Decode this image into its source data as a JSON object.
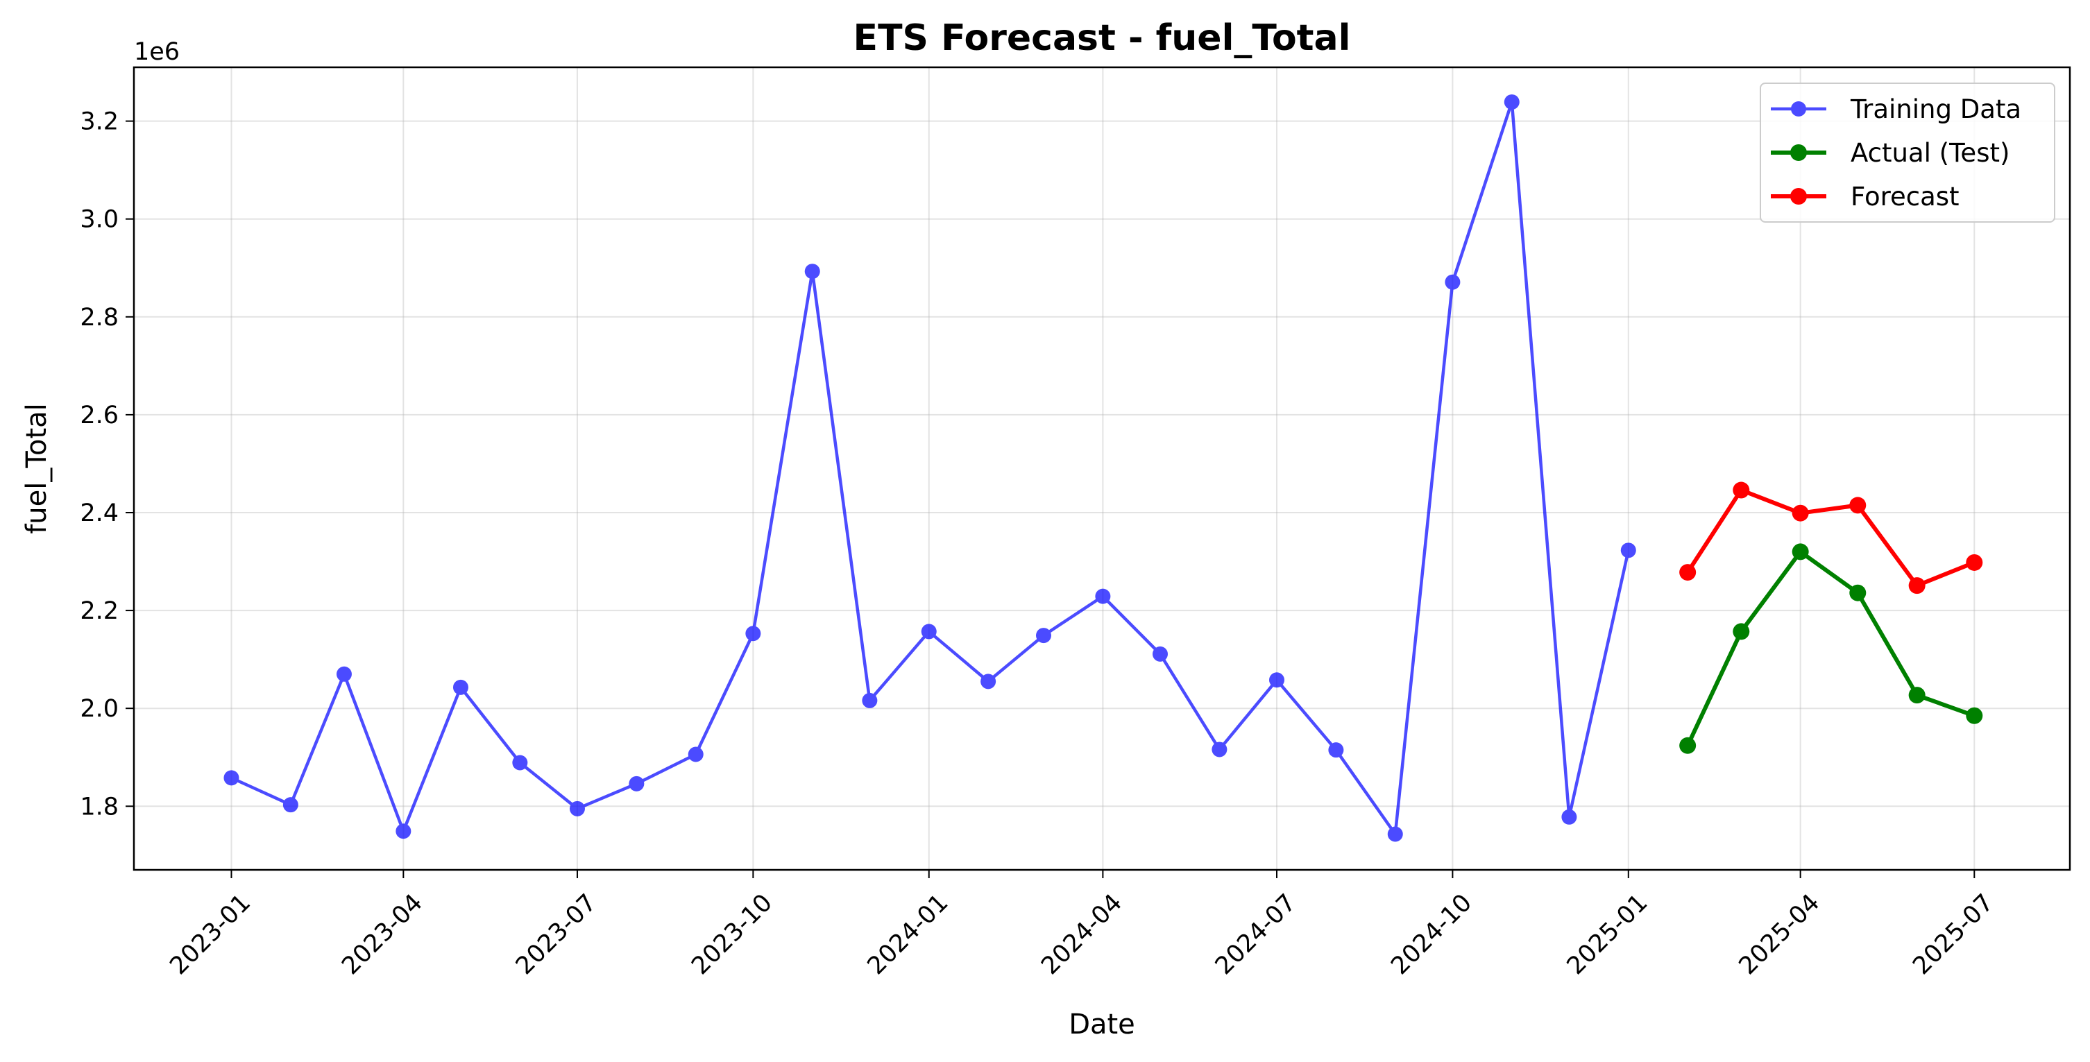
{
  "chart_data": {
    "type": "line",
    "title": "ETS Forecast - fuel_Total",
    "xlabel": "Date",
    "ylabel": "fuel_Total",
    "y_offset_label": "1e6",
    "ylim": [
      1.67,
      3.31
    ],
    "yticks": [
      1.8,
      2.0,
      2.2,
      2.4,
      2.6,
      2.8,
      3.0,
      3.2
    ],
    "ytick_labels": [
      "1.8",
      "2.0",
      "2.2",
      "2.4",
      "2.6",
      "2.8",
      "3.0",
      "3.2"
    ],
    "xlim": [
      "2022-11-11",
      "2025-08-20"
    ],
    "xticks": [
      "2023-01-01",
      "2023-04-01",
      "2023-07-01",
      "2023-10-01",
      "2024-01-01",
      "2024-04-01",
      "2024-07-01",
      "2024-10-01",
      "2025-01-01",
      "2025-04-01",
      "2025-07-01"
    ],
    "xtick_labels": [
      "2023-01",
      "2023-04",
      "2023-07",
      "2023-10",
      "2024-01",
      "2024-04",
      "2024-07",
      "2024-10",
      "2025-01",
      "2025-04",
      "2025-07"
    ],
    "grid": true,
    "legend_position": "top-right",
    "series": [
      {
        "name": "Training Data",
        "color": "#0000ff",
        "x": [
          "2023-01-01",
          "2023-02-01",
          "2023-03-01",
          "2023-04-01",
          "2023-05-01",
          "2023-06-01",
          "2023-07-01",
          "2023-08-01",
          "2023-09-01",
          "2023-10-01",
          "2023-11-01",
          "2023-12-01",
          "2024-01-01",
          "2024-02-01",
          "2024-03-01",
          "2024-04-01",
          "2024-05-01",
          "2024-06-01",
          "2024-07-01",
          "2024-08-01",
          "2024-09-01",
          "2024-10-01",
          "2024-11-01",
          "2024-12-01",
          "2025-01-01"
        ],
        "values": [
          1.858,
          1.803,
          2.07,
          1.749,
          2.043,
          1.889,
          1.795,
          1.846,
          1.906,
          2.153,
          2.893,
          2.016,
          2.157,
          2.055,
          2.149,
          2.229,
          2.111,
          1.916,
          2.058,
          1.915,
          1.743,
          2.871,
          3.239,
          1.778,
          2.323
        ]
      },
      {
        "name": "Actual (Test)",
        "color": "#008000",
        "x": [
          "2025-02-01",
          "2025-03-01",
          "2025-04-01",
          "2025-05-01",
          "2025-06-01",
          "2025-07-01"
        ],
        "values": [
          1.924,
          2.157,
          2.32,
          2.236,
          2.027,
          1.985
        ]
      },
      {
        "name": "Forecast",
        "color": "#ff0000",
        "x": [
          "2025-02-01",
          "2025-03-01",
          "2025-04-01",
          "2025-05-01",
          "2025-06-01",
          "2025-07-01"
        ],
        "values": [
          2.278,
          2.446,
          2.399,
          2.415,
          2.251,
          2.298
        ]
      }
    ]
  }
}
